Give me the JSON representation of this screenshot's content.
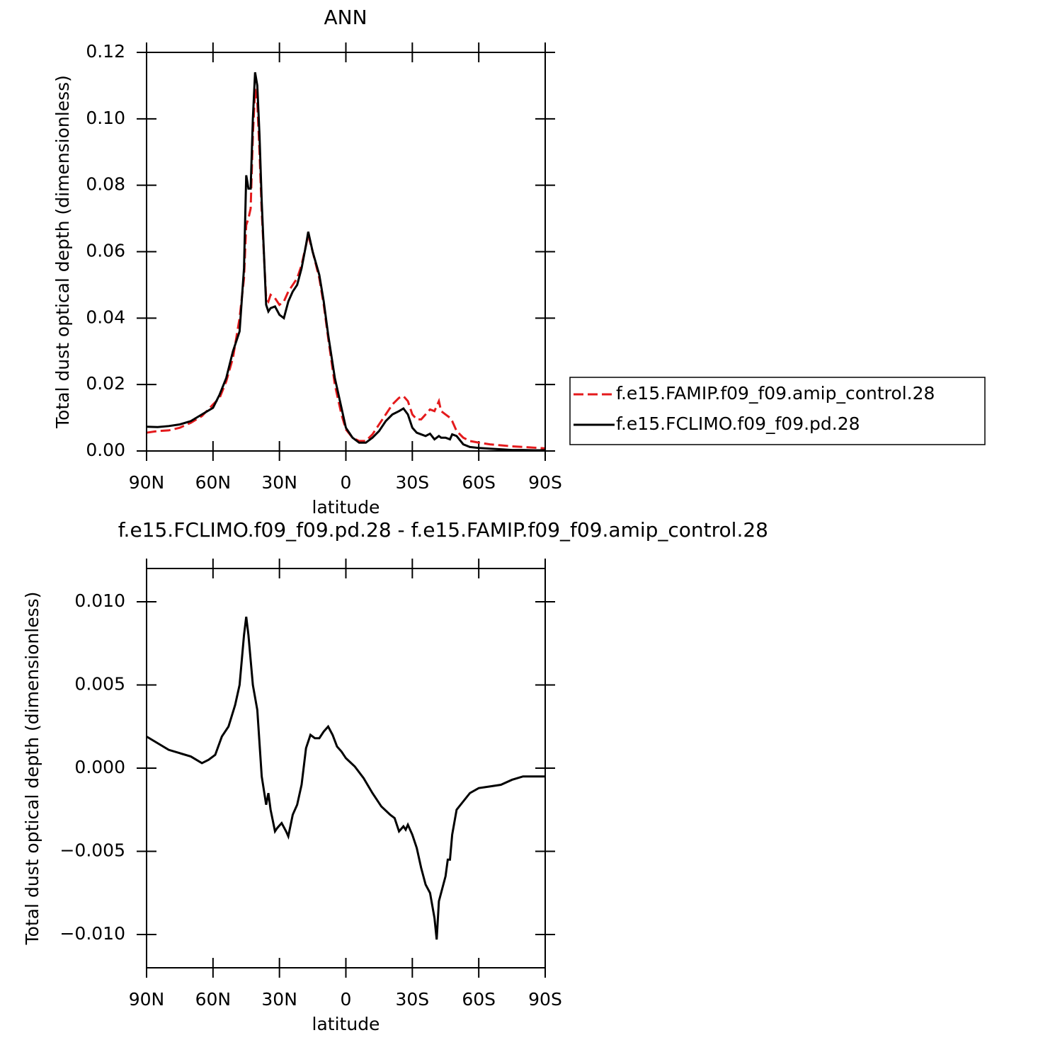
{
  "chart_data": [
    {
      "type": "line",
      "title": "ANN",
      "xlabel": "latitude",
      "ylabel": "Total dust optical depth (dimensionless)",
      "x": [
        90,
        85,
        80,
        75,
        70,
        65,
        60,
        57,
        54,
        51,
        48,
        46,
        45,
        44,
        43,
        42,
        41,
        40,
        39,
        38,
        36,
        35,
        34,
        32,
        30,
        28,
        26,
        24,
        22,
        20,
        18,
        17,
        15,
        12,
        10,
        8,
        5,
        2,
        0,
        -3,
        -6,
        -9,
        -12,
        -15,
        -18,
        -21,
        -24,
        -26,
        -28,
        -30,
        -32,
        -34,
        -36,
        -38,
        -40,
        -42,
        -43,
        -45,
        -47,
        -48,
        -50,
        -53,
        -56,
        -60,
        -65,
        -70,
        -75,
        -80,
        -85,
        -90
      ],
      "series": [
        {
          "name": "f.e15.FAMIP.f09_f09.amip_control.28",
          "color": "#e41a1c",
          "dash": "dashed",
          "values": [
            0.0055,
            0.006,
            0.0062,
            0.007,
            0.0085,
            0.0105,
            0.014,
            0.016,
            0.021,
            0.028,
            0.04,
            0.052,
            0.068,
            0.07,
            0.073,
            0.095,
            0.109,
            0.105,
            0.09,
            0.072,
            0.046,
            0.045,
            0.047,
            0.046,
            0.044,
            0.045,
            0.048,
            0.05,
            0.052,
            0.056,
            0.062,
            0.065,
            0.06,
            0.052,
            0.044,
            0.034,
            0.02,
            0.011,
            0.0065,
            0.004,
            0.003,
            0.003,
            0.005,
            0.008,
            0.011,
            0.014,
            0.016,
            0.0165,
            0.015,
            0.011,
            0.0095,
            0.0095,
            0.011,
            0.0125,
            0.012,
            0.015,
            0.012,
            0.011,
            0.01,
            0.009,
            0.006,
            0.004,
            0.003,
            0.0025,
            0.002,
            0.0017,
            0.0014,
            0.0012,
            0.001,
            0.0008
          ]
        },
        {
          "name": "f.e15.FCLIMO.f09_f09.pd.28",
          "color": "#000000",
          "dash": "solid",
          "values": [
            0.0073,
            0.0072,
            0.0075,
            0.008,
            0.009,
            0.011,
            0.013,
            0.017,
            0.022,
            0.03,
            0.036,
            0.055,
            0.083,
            0.079,
            0.079,
            0.1,
            0.114,
            0.11,
            0.095,
            0.075,
            0.044,
            0.042,
            0.043,
            0.0435,
            0.041,
            0.04,
            0.045,
            0.048,
            0.05,
            0.055,
            0.062,
            0.066,
            0.06,
            0.053,
            0.045,
            0.035,
            0.022,
            0.013,
            0.007,
            0.004,
            0.0025,
            0.0025,
            0.004,
            0.006,
            0.009,
            0.011,
            0.012,
            0.0128,
            0.011,
            0.007,
            0.0055,
            0.005,
            0.0045,
            0.0052,
            0.0035,
            0.0045,
            0.004,
            0.004,
            0.0035,
            0.005,
            0.0045,
            0.002,
            0.0012,
            0.0009,
            0.0007,
            0.0005,
            0.0003,
            0.0003,
            0.0002,
            0.0002
          ]
        }
      ],
      "xlim": [
        90,
        -90
      ],
      "xticks": [
        {
          "value": 90,
          "label": "90N"
        },
        {
          "value": 60,
          "label": "60N"
        },
        {
          "value": 30,
          "label": "30N"
        },
        0,
        {
          "value": -30,
          "label": "30S"
        },
        {
          "value": -60,
          "label": "60S"
        },
        {
          "value": -90,
          "label": "90S"
        }
      ],
      "ylim": [
        0,
        0.12
      ],
      "yticks": [
        {
          "value": 0,
          "label": "0.00"
        },
        0.02,
        0.04,
        0.06,
        0.08,
        {
          "value": 0.1,
          "label": "0.10"
        },
        0.12
      ],
      "legend": "outside right"
    },
    {
      "type": "line",
      "title": "f.e15.FCLIMO.f09_f09.pd.28 - f.e15.FAMIP.f09_f09.amip_control.28",
      "xlabel": "latitude",
      "ylabel": "Total dust optical depth (dimensionless)",
      "x": [
        90,
        85,
        80,
        75,
        70,
        65,
        62,
        59,
        56,
        53,
        50,
        48,
        46,
        45,
        44,
        42,
        40,
        38,
        36,
        35,
        34,
        32,
        31,
        29,
        27,
        26,
        24,
        22,
        20,
        18,
        16,
        14,
        12,
        10,
        8,
        6,
        4,
        2,
        0,
        -4,
        -8,
        -12,
        -16,
        -20,
        -22,
        -24,
        -26,
        -27,
        -28,
        -30,
        -32,
        -34,
        -36,
        -38,
        -40,
        -41,
        -42,
        -43,
        -45,
        -46,
        -47,
        -48,
        -50,
        -53,
        -56,
        -60,
        -65,
        -70,
        -75,
        -80,
        -85,
        -90
      ],
      "values": [
        0.0019,
        0.0015,
        0.0011,
        0.0009,
        0.0007,
        0.0003,
        0.0005,
        0.0008,
        0.0019,
        0.0025,
        0.0038,
        0.005,
        0.008,
        0.0091,
        0.008,
        0.005,
        0.0035,
        -0.0005,
        -0.0022,
        -0.0015,
        -0.0025,
        -0.0038,
        -0.0036,
        -0.0033,
        -0.0038,
        -0.0041,
        -0.0028,
        -0.0022,
        -0.001,
        0.0012,
        0.002,
        0.0018,
        0.0018,
        0.0022,
        0.0025,
        0.002,
        0.0013,
        0.001,
        0.0006,
        0.0001,
        -0.0006,
        -0.0015,
        -0.0023,
        -0.0028,
        -0.003,
        -0.0038,
        -0.0035,
        -0.0037,
        -0.0034,
        -0.004,
        -0.0048,
        -0.006,
        -0.007,
        -0.0075,
        -0.009,
        -0.0103,
        -0.008,
        -0.0075,
        -0.0065,
        -0.0055,
        -0.0055,
        -0.004,
        -0.0025,
        -0.002,
        -0.0015,
        -0.0012,
        -0.0011,
        -0.001,
        -0.0007,
        -0.0005,
        -0.0005,
        -0.0005
      ],
      "color": "#000000",
      "xlim": [
        90,
        -90
      ],
      "xticks": [
        {
          "value": 90,
          "label": "90N"
        },
        {
          "value": 60,
          "label": "60N"
        },
        {
          "value": 30,
          "label": "30N"
        },
        0,
        {
          "value": -30,
          "label": "30S"
        },
        {
          "value": -60,
          "label": "60S"
        },
        {
          "value": -90,
          "label": "90S"
        }
      ],
      "ylim": [
        -0.012,
        0.012
      ],
      "yticks": [
        {
          "value": -0.01,
          "label": "−0.010"
        },
        {
          "value": -0.005,
          "label": "−0.005"
        },
        {
          "value": 0,
          "label": "0.000"
        },
        0.005,
        {
          "value": 0.01,
          "label": "0.010"
        }
      ]
    }
  ]
}
